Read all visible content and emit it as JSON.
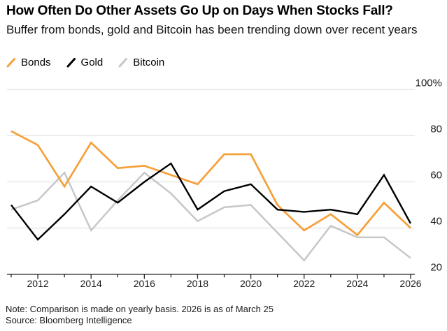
{
  "header": {
    "title": "How Often Do Other Assets Go Up on Days When Stocks Fall?",
    "subtitle": "Buffer from bonds, gold and Bitcoin has been trending down over recent years"
  },
  "legend": [
    {
      "label": "Bonds",
      "color": "#F6A03A"
    },
    {
      "label": "Gold",
      "color": "#000000"
    },
    {
      "label": "Bitcoin",
      "color": "#C7C7C7"
    }
  ],
  "footer": {
    "note": "Note: Comparison is made on yearly basis. 2026 is as of March 25",
    "source": "Source: Bloomberg Intelligence"
  },
  "chart_data": {
    "type": "line",
    "title": "How Often Do Other Assets Go Up on Days When Stocks Fall?",
    "x": [
      2011,
      2012,
      2013,
      2014,
      2015,
      2016,
      2017,
      2018,
      2019,
      2020,
      2021,
      2022,
      2023,
      2024,
      2025,
      2026
    ],
    "series": [
      {
        "name": "Bonds",
        "color": "#F6A03A",
        "width": 2.7,
        "values": [
          82,
          76,
          58,
          77,
          66,
          67,
          63,
          59,
          72,
          72,
          50,
          39,
          46,
          37,
          51,
          40
        ]
      },
      {
        "name": "Gold",
        "color": "#000000",
        "width": 2.4,
        "values": [
          50,
          35,
          46,
          58,
          51,
          60,
          68,
          48,
          56,
          59,
          48,
          47,
          48,
          46,
          63,
          42
        ]
      },
      {
        "name": "Bitcoin",
        "color": "#C7C7C7",
        "width": 2.5,
        "values": [
          48,
          52,
          64,
          39,
          52,
          64,
          55,
          43,
          49,
          50,
          38,
          26,
          41,
          36,
          36,
          27
        ]
      }
    ],
    "ylim": [
      20,
      100
    ],
    "yticks": [
      {
        "label": "100%",
        "value": 100
      },
      {
        "label": "80",
        "value": 80
      },
      {
        "label": "60",
        "value": 60
      },
      {
        "label": "40",
        "value": 40
      },
      {
        "label": "20",
        "value": 20
      }
    ],
    "xtick_labels": [
      2012,
      2014,
      2016,
      2018,
      2020,
      2022,
      2024,
      2026
    ],
    "grid": "horizontal",
    "legend_position": "top-left",
    "colors": {
      "grid": "#DBDBDB",
      "axis": "#262626",
      "tick_label": "#1a1a1a"
    }
  }
}
